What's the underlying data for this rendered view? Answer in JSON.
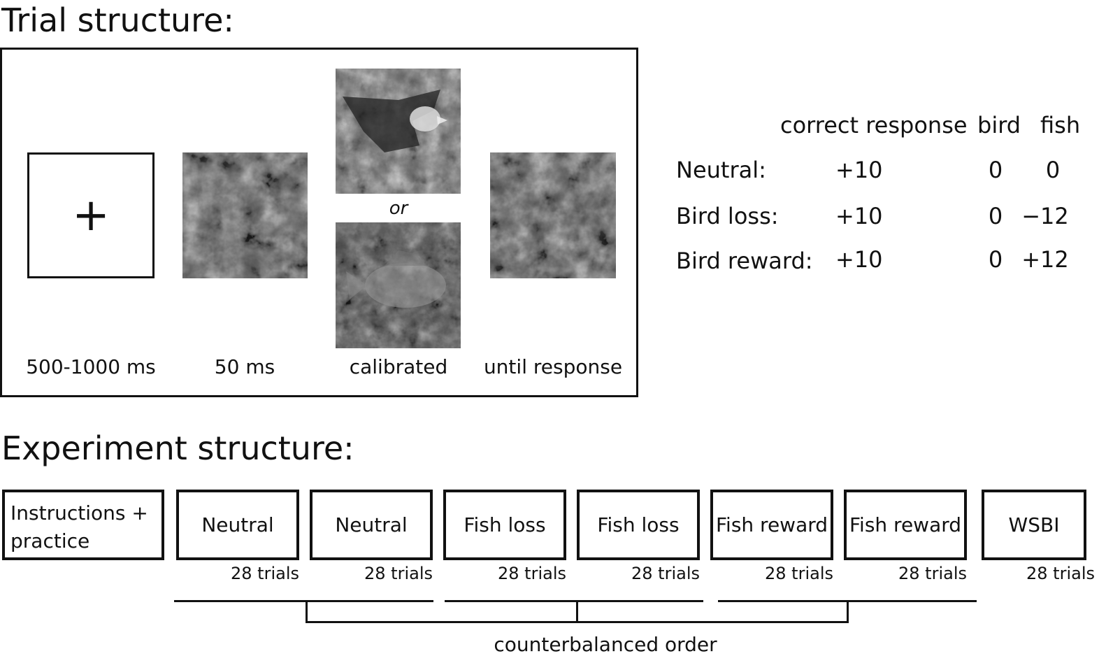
{
  "trial_section": {
    "title": "Trial structure:",
    "fixation_symbol": "+",
    "or_label": "or",
    "stages": [
      {
        "duration": "500-1000 ms"
      },
      {
        "duration": "50 ms"
      },
      {
        "duration": "calibrated"
      },
      {
        "duration": "until response"
      }
    ]
  },
  "payoff_table": {
    "headers": [
      "correct response",
      "bird",
      "fish"
    ],
    "rows": [
      {
        "condition": "Neutral:",
        "correct": "+10",
        "bird": "0",
        "fish": "0"
      },
      {
        "condition": "Bird loss:",
        "correct": "+10",
        "bird": "0",
        "fish": "−12"
      },
      {
        "condition": "Bird reward:",
        "correct": "+10",
        "bird": "0",
        "fish": "+12"
      }
    ]
  },
  "experiment_section": {
    "title": "Experiment structure:",
    "blocks": [
      {
        "label": "Instructions + practice",
        "trials": ""
      },
      {
        "label": "Neutral",
        "trials": "28 trials"
      },
      {
        "label": "Neutral",
        "trials": "28 trials"
      },
      {
        "label": "Fish loss",
        "trials": "28 trials"
      },
      {
        "label": "Fish loss",
        "trials": "28 trials"
      },
      {
        "label": "Fish reward",
        "trials": "28 trials"
      },
      {
        "label": "Fish reward",
        "trials": "28 trials"
      },
      {
        "label": "WSBI",
        "trials": "28 trials"
      }
    ],
    "counterbalance_label": "counterbalanced order"
  }
}
